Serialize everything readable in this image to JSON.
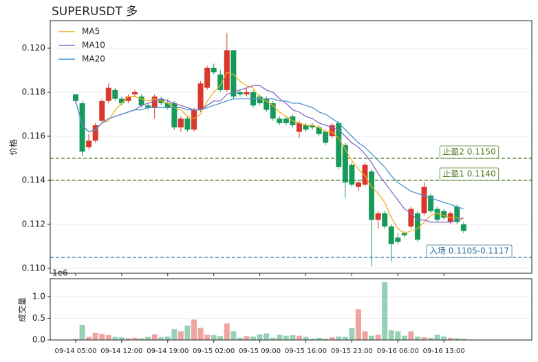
{
  "chart_data": {
    "type": "candlestick",
    "title": "SUPERUSDT  多",
    "ylabel": "价格",
    "categories": [
      "09-14 05:00",
      null,
      null,
      null,
      null,
      null,
      null,
      "09-14 12:00",
      null,
      null,
      null,
      null,
      null,
      null,
      "09-14 19:00",
      null,
      null,
      null,
      null,
      null,
      null,
      "09-15 02:00",
      null,
      null,
      null,
      null,
      null,
      null,
      "09-15 09:00",
      null,
      null,
      null,
      null,
      null,
      null,
      "09-15 16:00",
      null,
      null,
      null,
      null,
      null,
      null,
      "09-15 23:00",
      null,
      null,
      null,
      null,
      null,
      null,
      "09-16 06:00",
      null,
      null,
      null,
      null,
      null,
      null,
      "09-16 13:00",
      null,
      null,
      null
    ],
    "open": [
      0.1179,
      0.1175,
      0.1155,
      0.1158,
      0.1167,
      0.1176,
      0.1181,
      0.1177,
      0.1176,
      0.1179,
      0.1178,
      0.1174,
      0.1173,
      0.1177,
      0.1175,
      0.1175,
      0.1164,
      0.1168,
      0.1163,
      0.1172,
      0.1182,
      0.1191,
      0.1188,
      0.1181,
      0.1199,
      0.118,
      0.1179,
      0.118,
      0.1178,
      0.1177,
      0.1175,
      0.1168,
      0.1168,
      0.1169,
      0.1162,
      0.1165,
      0.1165,
      0.1164,
      0.1162,
      0.116,
      0.1166,
      0.1156,
      0.1147,
      0.1137,
      0.1138,
      0.1144,
      0.1122,
      0.1125,
      0.1119,
      0.1114,
      0.1116,
      0.1119,
      0.1125,
      0.1125,
      0.1133,
      0.1127,
      0.1126,
      0.1121,
      0.1128,
      0.112
    ],
    "high": [
      0.1179,
      0.1176,
      0.1161,
      0.1166,
      0.1177,
      0.1184,
      0.1182,
      0.1178,
      0.1179,
      0.1181,
      0.1179,
      0.1175,
      0.1179,
      0.1178,
      0.1177,
      0.1176,
      0.1169,
      0.1169,
      0.1173,
      0.1185,
      0.1192,
      0.1193,
      0.119,
      0.1207,
      0.1199,
      0.1181,
      0.1182,
      0.1181,
      0.1179,
      0.1178,
      0.1176,
      0.1169,
      0.1169,
      0.117,
      0.1167,
      0.1166,
      0.1166,
      0.1165,
      0.1163,
      0.1166,
      0.1167,
      0.1157,
      0.1148,
      0.114,
      0.1148,
      0.1145,
      0.1126,
      0.1126,
      0.112,
      0.1116,
      0.1117,
      0.1128,
      0.1126,
      0.1139,
      0.1134,
      0.1128,
      0.1127,
      0.1126,
      0.1129,
      0.1121
    ],
    "low": [
      0.1175,
      0.1151,
      0.1154,
      0.1157,
      0.1166,
      0.1175,
      0.1176,
      0.1174,
      0.1175,
      0.1178,
      0.1173,
      0.1172,
      0.1168,
      0.1174,
      0.1172,
      0.1163,
      0.1162,
      0.1162,
      0.1162,
      0.1171,
      0.1181,
      0.1188,
      0.118,
      0.118,
      0.1177,
      0.1178,
      0.1178,
      0.1173,
      0.1174,
      0.1171,
      0.1167,
      0.1165,
      0.1165,
      0.1164,
      0.1159,
      0.1162,
      0.1163,
      0.116,
      0.1156,
      0.1159,
      0.1145,
      0.1132,
      0.1137,
      0.1135,
      0.1137,
      0.1101,
      0.1118,
      0.1118,
      0.1103,
      0.1111,
      0.1114,
      0.1118,
      0.1112,
      0.1124,
      0.1125,
      0.1121,
      0.1122,
      0.112,
      0.112,
      0.1116
    ],
    "close": [
      0.1176,
      0.1153,
      0.1158,
      0.1165,
      0.1176,
      0.1182,
      0.1177,
      0.1175,
      0.1178,
      0.118,
      0.1174,
      0.1173,
      0.1178,
      0.1175,
      0.1173,
      0.1164,
      0.1168,
      0.1163,
      0.1172,
      0.1184,
      0.1191,
      0.1189,
      0.1181,
      0.1199,
      0.1178,
      0.1179,
      0.118,
      0.1174,
      0.1175,
      0.1172,
      0.1168,
      0.1166,
      0.1166,
      0.1165,
      0.1166,
      0.1163,
      0.1164,
      0.1161,
      0.1157,
      0.1165,
      0.1146,
      0.1139,
      0.1138,
      0.1139,
      0.1147,
      0.1122,
      0.1125,
      0.1119,
      0.1111,
      0.1112,
      0.1115,
      0.1127,
      0.1113,
      0.1137,
      0.1126,
      0.1122,
      0.1123,
      0.1125,
      0.1121,
      0.1117
    ],
    "up_color": "#d9382c",
    "down_color": "#169a5a",
    "ylim": [
      0.10978,
      0.12125
    ],
    "yticks": [
      {
        "value": 0.11,
        "label": "0.110"
      },
      0.112,
      0.114,
      0.116,
      0.118,
      {
        "value": 0.12,
        "label": "0.120"
      }
    ],
    "grid": true,
    "legend": "upper left",
    "series": [
      {
        "name": "MA5",
        "color": "#f0ae1a",
        "values": [
          0.1176,
          0.1165,
          0.1162,
          0.1163,
          0.1166,
          0.1167,
          0.1172,
          0.1175,
          0.1178,
          0.1178,
          0.1177,
          0.1176,
          0.1177,
          0.1176,
          0.1175,
          0.1173,
          0.1172,
          0.1169,
          0.1168,
          0.117,
          0.1176,
          0.118,
          0.1183,
          0.1189,
          0.1188,
          0.1185,
          0.1183,
          0.1182,
          0.1177,
          0.1176,
          0.1174,
          0.1171,
          0.1169,
          0.1167,
          0.1166,
          0.1165,
          0.1165,
          0.1164,
          0.1162,
          0.1162,
          0.1159,
          0.1154,
          0.1149,
          0.1145,
          0.1142,
          0.1137,
          0.1134,
          0.113,
          0.1123,
          0.1118,
          0.1116,
          0.1117,
          0.1118,
          0.1121,
          0.1124,
          0.1125,
          0.1124,
          0.1123,
          0.1123,
          0.1122
        ]
      },
      {
        "name": "MA10",
        "color": "#8868c8",
        "values": [
          0.1176,
          0.1165,
          0.1162,
          0.1163,
          0.1166,
          0.1168,
          0.1169,
          0.117,
          0.1171,
          0.1172,
          0.1174,
          0.1175,
          0.1176,
          0.1177,
          0.1176,
          0.1175,
          0.1174,
          0.1173,
          0.1172,
          0.1172,
          0.1174,
          0.1176,
          0.1176,
          0.1179,
          0.118,
          0.1181,
          0.1182,
          0.1183,
          0.1183,
          0.1181,
          0.118,
          0.1177,
          0.1175,
          0.1172,
          0.1171,
          0.1169,
          0.1168,
          0.1166,
          0.1165,
          0.1164,
          0.1163,
          0.116,
          0.1157,
          0.1155,
          0.1152,
          0.1148,
          0.1143,
          0.1139,
          0.1135,
          0.1131,
          0.1127,
          0.1125,
          0.1122,
          0.1122,
          0.1121,
          0.1121,
          0.1121,
          0.1121,
          0.1122,
          0.1123
        ]
      },
      {
        "name": "MA20",
        "color": "#4a94d0",
        "values": [
          0.1176,
          0.1165,
          0.1162,
          0.1163,
          0.1166,
          0.1168,
          0.1169,
          0.117,
          0.1171,
          0.1172,
          0.1172,
          0.1173,
          0.1173,
          0.1173,
          0.1173,
          0.1173,
          0.1173,
          0.1172,
          0.1172,
          0.1172,
          0.1173,
          0.1174,
          0.1175,
          0.1176,
          0.1177,
          0.1177,
          0.1177,
          0.1177,
          0.1177,
          0.1177,
          0.1177,
          0.1176,
          0.1176,
          0.1175,
          0.1175,
          0.1174,
          0.1173,
          0.1171,
          0.117,
          0.1168,
          0.1166,
          0.1163,
          0.116,
          0.1157,
          0.1155,
          0.1152,
          0.1149,
          0.1146,
          0.1142,
          0.1139,
          0.1137,
          0.1135,
          0.1134,
          0.1133,
          0.1132,
          0.1131,
          0.113,
          0.1129,
          0.1128,
          0.1127
        ]
      }
    ],
    "levels": [
      {
        "value": 0.115,
        "label": "止盈2 0.1150",
        "color": "#4b7a1c"
      },
      {
        "value": 0.114,
        "label": "止盈1 0.1140",
        "color": "#4b7a1c"
      },
      {
        "value": 0.1105,
        "label": "入场 0.1105-0.1117",
        "color": "#2e6f9e"
      }
    ],
    "volume": {
      "ylabel": "成交量",
      "offset_label": "1e6",
      "values": [
        0.02,
        0.35,
        0.07,
        0.16,
        0.14,
        0.11,
        0.07,
        0.06,
        0.04,
        0.05,
        0.04,
        0.07,
        0.13,
        0.06,
        0.08,
        0.25,
        0.2,
        0.33,
        0.47,
        0.28,
        0.12,
        0.11,
        0.09,
        0.38,
        0.2,
        0.05,
        0.09,
        0.08,
        0.13,
        0.15,
        0.05,
        0.12,
        0.1,
        0.11,
        0.1,
        0.07,
        0.03,
        0.05,
        0.03,
        0.06,
        0.08,
        0.07,
        0.27,
        0.71,
        0.2,
        0.1,
        0.12,
        1.33,
        0.22,
        0.2,
        0.1,
        0.2,
        0.08,
        0.06,
        0.05,
        0.12,
        0.08,
        0.05,
        0.04,
        0.03
      ],
      "ylim": [
        0,
        1.41
      ],
      "yticks": [
        {
          "value": 0,
          "label": "0.0"
        },
        0.5,
        {
          "value": 1,
          "label": "1.0"
        }
      ]
    }
  }
}
